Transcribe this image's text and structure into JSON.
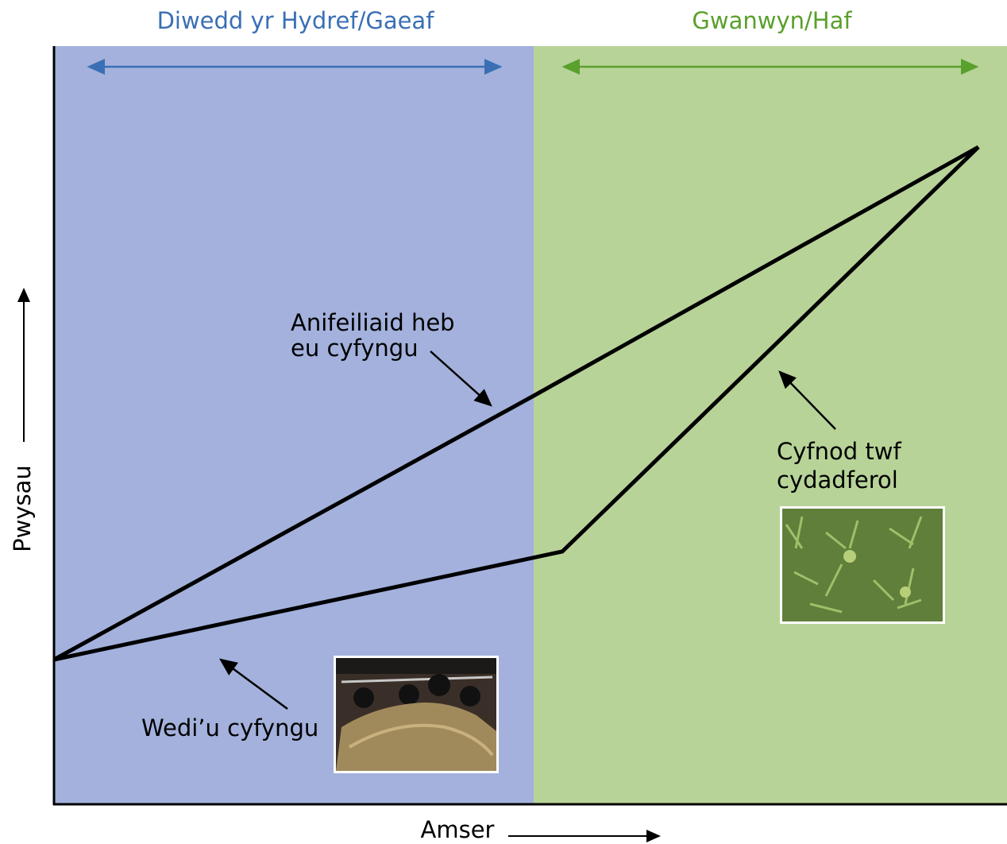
{
  "seasons": {
    "left": "Diwedd yr Hydref/Gaeaf",
    "right": "Gwanwyn/Haf"
  },
  "annotations": {
    "unrestricted": [
      "Anifeiliaid heb",
      "eu cyfyngu"
    ],
    "compensatory": [
      "Cyfnod twf",
      "cydadferol"
    ],
    "restricted": [
      "Wedi’u cyfyngu"
    ]
  },
  "axes": {
    "y_label": "Pwysau",
    "x_label": "Amser"
  }
}
